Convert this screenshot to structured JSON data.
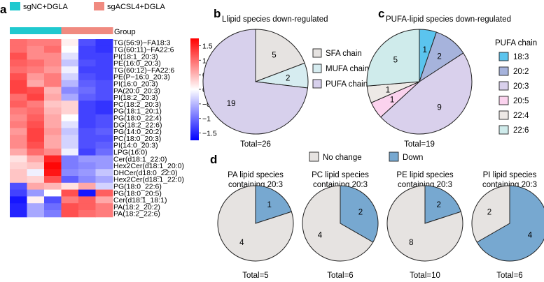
{
  "panel_labels": {
    "a": "a",
    "b": "b",
    "c": "c",
    "d": "d"
  },
  "chart_data": [
    {
      "id": "a",
      "type": "heatmap",
      "title": "",
      "legend": [
        {
          "label": "sgNC+DGLA",
          "color": "#20c9cf"
        },
        {
          "label": "sgACSL4+DGLA",
          "color": "#f08a80"
        }
      ],
      "group_label": "Group",
      "group_columns": [
        0,
        0,
        0,
        1,
        1,
        1
      ],
      "colorbar": {
        "ticks": [
          1.5,
          1,
          0.5,
          0,
          -0.5,
          -1,
          -1.5
        ],
        "tick_labels": [
          "1.5",
          "1",
          "0.5",
          "0",
          "−0.5",
          "−1",
          "−1.5"
        ],
        "range": [
          -1.75,
          1.75
        ]
      },
      "rows": [
        "TG(56:9)−FA18:3",
        "TG(60:11)−FA22:6",
        "PI(18:1_20:3)",
        "PE(16:0_20:3)",
        "TG(60:12)−FA22:6",
        "PE(P−16:0_20:3)",
        "PI(16:0_20:3)",
        "PA(20:0_20:3)",
        "PI(18:2_20:3)",
        "PC(18:2_20:3)",
        "PG(18:1_20:1)",
        "PG(18:0_22:4)",
        "DG(18:2_22:6)",
        "PG(14:0_20:2)",
        "PC(18:0_20:3)",
        "PI(14:0_20:3)",
        "LPG(16:0)",
        "Cer(d18:1_22:0)",
        "Hex2Cer(d18:1_20:0)",
        "DHCer(d18:0_22:0)",
        "Hex2Cer(d18:1_22:0)",
        "PG(18:0_22:6)",
        "PG(18:0_20:5)",
        "Cer(d18:1_18:1)",
        "PA(18:2_20:2)",
        "PA(18:2_22:6)"
      ],
      "values": [
        [
          1.0,
          0.9,
          0.9,
          0.1,
          -1.2,
          -1.4
        ],
        [
          1.0,
          0.8,
          1.0,
          0.0,
          -1.3,
          -1.4
        ],
        [
          1.2,
          0.8,
          0.8,
          -0.2,
          -1.3,
          -1.3
        ],
        [
          1.1,
          1.0,
          0.8,
          -0.4,
          -1.2,
          -1.3
        ],
        [
          1.0,
          0.9,
          0.7,
          -0.1,
          -1.3,
          -1.3
        ],
        [
          1.2,
          0.7,
          0.9,
          -0.3,
          -1.2,
          -1.3
        ],
        [
          1.3,
          0.6,
          0.9,
          -0.5,
          -1.1,
          -1.2
        ],
        [
          1.3,
          1.2,
          0.5,
          -0.8,
          -1.0,
          -1.2
        ],
        [
          1.0,
          1.3,
          0.6,
          -0.6,
          -1.1,
          -1.2
        ],
        [
          1.1,
          0.9,
          0.4,
          0.3,
          -1.3,
          -1.4
        ],
        [
          0.9,
          1.0,
          0.5,
          0.3,
          -1.3,
          -1.4
        ],
        [
          0.8,
          1.1,
          0.6,
          0.0,
          -1.3,
          -1.2
        ],
        [
          0.9,
          1.2,
          0.6,
          -0.2,
          -1.3,
          -1.2
        ],
        [
          0.7,
          1.3,
          0.7,
          -0.4,
          -1.2,
          -1.1
        ],
        [
          0.8,
          1.3,
          0.6,
          -0.3,
          -1.2,
          -1.2
        ],
        [
          0.8,
          1.2,
          0.6,
          -0.3,
          -1.2,
          -1.1
        ],
        [
          0.6,
          1.0,
          0.8,
          -0.1,
          -1.3,
          -1.0
        ],
        [
          0.2,
          0.6,
          1.5,
          -0.9,
          -0.7,
          -0.7
        ],
        [
          0.3,
          0.4,
          1.7,
          -0.9,
          -0.8,
          -0.7
        ],
        [
          0.4,
          -0.1,
          1.6,
          -0.8,
          -0.7,
          -0.4
        ],
        [
          0.4,
          0.3,
          1.2,
          -1.1,
          -0.8,
          -0.6
        ],
        [
          -1.2,
          0.6,
          0.5,
          0.2,
          0.6,
          -0.3
        ],
        [
          -1.3,
          -0.7,
          0.0,
          1.2,
          -1.6,
          1.1
        ],
        [
          -1.6,
          0.1,
          -1.2,
          0.9,
          1.1,
          0.6
        ],
        [
          -1.5,
          -0.6,
          -1.0,
          1.2,
          1.1,
          0.9
        ],
        [
          -1.5,
          -0.6,
          -0.9,
          1.2,
          1.0,
          0.9
        ]
      ]
    },
    {
      "id": "b",
      "type": "pie",
      "title": "Llipid species down-regulated",
      "start": "PUFA chain",
      "labels": [
        "SFA chain",
        "MUFA chain",
        "PUFA chain"
      ],
      "values": [
        5,
        2,
        19
      ],
      "colors": [
        "#e6e3e1",
        "#d6ecf0",
        "#d7d0ec"
      ],
      "total_text": "Total=26",
      "legend": "right"
    },
    {
      "id": "c",
      "type": "pie",
      "title": "PUFA-lipid species down-regulated",
      "legend_title": "PUFA chain",
      "labels": [
        "18:3",
        "20:2",
        "20:3",
        "20:5",
        "22:4",
        "22:6"
      ],
      "values": [
        1,
        2,
        9,
        1,
        1,
        5
      ],
      "colors": [
        "#5bc4ee",
        "#a6b3dc",
        "#d9d0ec",
        "#fbd3ee",
        "#ede9e6",
        "#cfebeb"
      ],
      "total_text": "Total=19",
      "legend": "right"
    },
    {
      "id": "d",
      "type": "pie",
      "legend_items": [
        {
          "label": "No change",
          "color": "#e6e3e1"
        },
        {
          "label": "Down",
          "color": "#77a8d0"
        }
      ],
      "subplots": [
        {
          "title_line1": "PA lipid species",
          "title_line2": "containing 20:3",
          "down": 1,
          "no_change": 4,
          "total_text": "Total=5"
        },
        {
          "title_line1": "PC lipid species",
          "title_line2": "containing 20:3",
          "down": 2,
          "no_change": 4,
          "total_text": "Total=6"
        },
        {
          "title_line1": "PE lipid species",
          "title_line2": "containing 20:3",
          "down": 2,
          "no_change": 8,
          "total_text": "Total=10"
        },
        {
          "title_line1": "PI lipid species",
          "title_line2": "containing 20:3",
          "down": 4,
          "no_change": 2,
          "total_text": "Total=6"
        }
      ]
    }
  ]
}
